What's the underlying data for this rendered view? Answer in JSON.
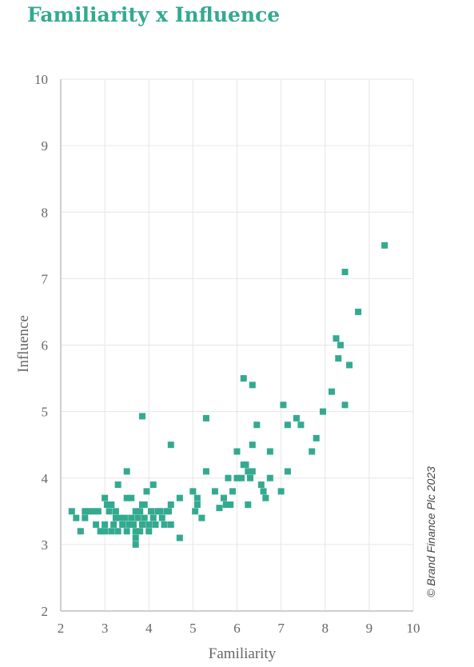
{
  "colors": {
    "accent": "#33aa8f",
    "grid": "#e6e6e6",
    "axis": "#bfbfbf"
  },
  "chart_data": {
    "type": "scatter",
    "title": "Familiarity x Influence",
    "xlabel": "Familiarity",
    "ylabel": "Influence",
    "xlim": [
      2,
      10
    ],
    "ylim": [
      2,
      10
    ],
    "xticks": [
      "2",
      "3",
      "4",
      "5",
      "6",
      "7",
      "8",
      "9",
      "10"
    ],
    "yticks": [
      "2",
      "3",
      "4",
      "5",
      "6",
      "7",
      "8",
      "9",
      "10"
    ],
    "grid": true,
    "copyright": "© Brand Finance Plc 2023",
    "points": [
      [
        2.25,
        3.5
      ],
      [
        2.35,
        3.4
      ],
      [
        2.45,
        3.2
      ],
      [
        2.55,
        3.5
      ],
      [
        2.55,
        3.4
      ],
      [
        2.65,
        3.5
      ],
      [
        2.75,
        3.5
      ],
      [
        2.8,
        3.3
      ],
      [
        2.85,
        3.5
      ],
      [
        2.9,
        3.2
      ],
      [
        3.0,
        3.3
      ],
      [
        3.0,
        3.2
      ],
      [
        3.0,
        3.7
      ],
      [
        3.05,
        3.6
      ],
      [
        3.1,
        3.5
      ],
      [
        3.15,
        3.2
      ],
      [
        3.15,
        3.6
      ],
      [
        3.2,
        3.3
      ],
      [
        3.25,
        3.4
      ],
      [
        3.25,
        3.5
      ],
      [
        3.3,
        3.2
      ],
      [
        3.3,
        3.9
      ],
      [
        3.35,
        3.4
      ],
      [
        3.4,
        3.3
      ],
      [
        3.45,
        3.4
      ],
      [
        3.5,
        3.2
      ],
      [
        3.5,
        4.1
      ],
      [
        3.5,
        3.7
      ],
      [
        3.55,
        3.3
      ],
      [
        3.6,
        3.4
      ],
      [
        3.6,
        3.7
      ],
      [
        3.65,
        3.3
      ],
      [
        3.7,
        3.2
      ],
      [
        3.7,
        3.5
      ],
      [
        3.7,
        3.1
      ],
      [
        3.7,
        3.0
      ],
      [
        3.75,
        3.4
      ],
      [
        3.8,
        3.5
      ],
      [
        3.8,
        3.2
      ],
      [
        3.85,
        3.6
      ],
      [
        3.85,
        3.3
      ],
      [
        3.85,
        4.93
      ],
      [
        3.9,
        3.4
      ],
      [
        3.9,
        3.6
      ],
      [
        3.95,
        3.8
      ],
      [
        4.0,
        3.3
      ],
      [
        4.0,
        3.2
      ],
      [
        4.05,
        3.5
      ],
      [
        4.1,
        3.4
      ],
      [
        4.1,
        3.9
      ],
      [
        4.15,
        3.3
      ],
      [
        4.2,
        3.5
      ],
      [
        4.25,
        3.5
      ],
      [
        4.3,
        3.4
      ],
      [
        4.35,
        3.3
      ],
      [
        4.4,
        3.5
      ],
      [
        4.45,
        3.5
      ],
      [
        4.5,
        3.3
      ],
      [
        4.5,
        3.6
      ],
      [
        4.5,
        4.5
      ],
      [
        4.7,
        3.1
      ],
      [
        4.7,
        3.7
      ],
      [
        5.0,
        3.8
      ],
      [
        5.05,
        3.5
      ],
      [
        5.1,
        3.6
      ],
      [
        5.1,
        3.7
      ],
      [
        5.2,
        3.4
      ],
      [
        5.3,
        4.9
      ],
      [
        5.3,
        4.1
      ],
      [
        5.5,
        3.8
      ],
      [
        5.6,
        3.55
      ],
      [
        5.7,
        3.7
      ],
      [
        5.75,
        3.6
      ],
      [
        5.8,
        4.0
      ],
      [
        5.85,
        3.6
      ],
      [
        5.9,
        3.8
      ],
      [
        6.0,
        4.0
      ],
      [
        6.0,
        4.4
      ],
      [
        6.1,
        4.0
      ],
      [
        6.15,
        4.2
      ],
      [
        6.15,
        5.5
      ],
      [
        6.2,
        4.2
      ],
      [
        6.25,
        3.6
      ],
      [
        6.25,
        4.1
      ],
      [
        6.3,
        4.0
      ],
      [
        6.35,
        4.5
      ],
      [
        6.35,
        4.1
      ],
      [
        6.35,
        5.4
      ],
      [
        6.45,
        4.8
      ],
      [
        6.55,
        3.9
      ],
      [
        6.6,
        3.8
      ],
      [
        6.65,
        3.7
      ],
      [
        6.75,
        4.4
      ],
      [
        6.75,
        4.0
      ],
      [
        7.0,
        3.8
      ],
      [
        7.05,
        5.1
      ],
      [
        7.15,
        4.8
      ],
      [
        7.15,
        4.1
      ],
      [
        7.35,
        4.9
      ],
      [
        7.45,
        4.8
      ],
      [
        7.7,
        4.4
      ],
      [
        7.8,
        4.6
      ],
      [
        7.95,
        5.0
      ],
      [
        8.15,
        5.3
      ],
      [
        8.25,
        6.1
      ],
      [
        8.3,
        5.8
      ],
      [
        8.35,
        6.0
      ],
      [
        8.45,
        5.1
      ],
      [
        8.45,
        7.1
      ],
      [
        8.55,
        5.7
      ],
      [
        8.75,
        6.5
      ],
      [
        9.35,
        7.5
      ]
    ]
  }
}
